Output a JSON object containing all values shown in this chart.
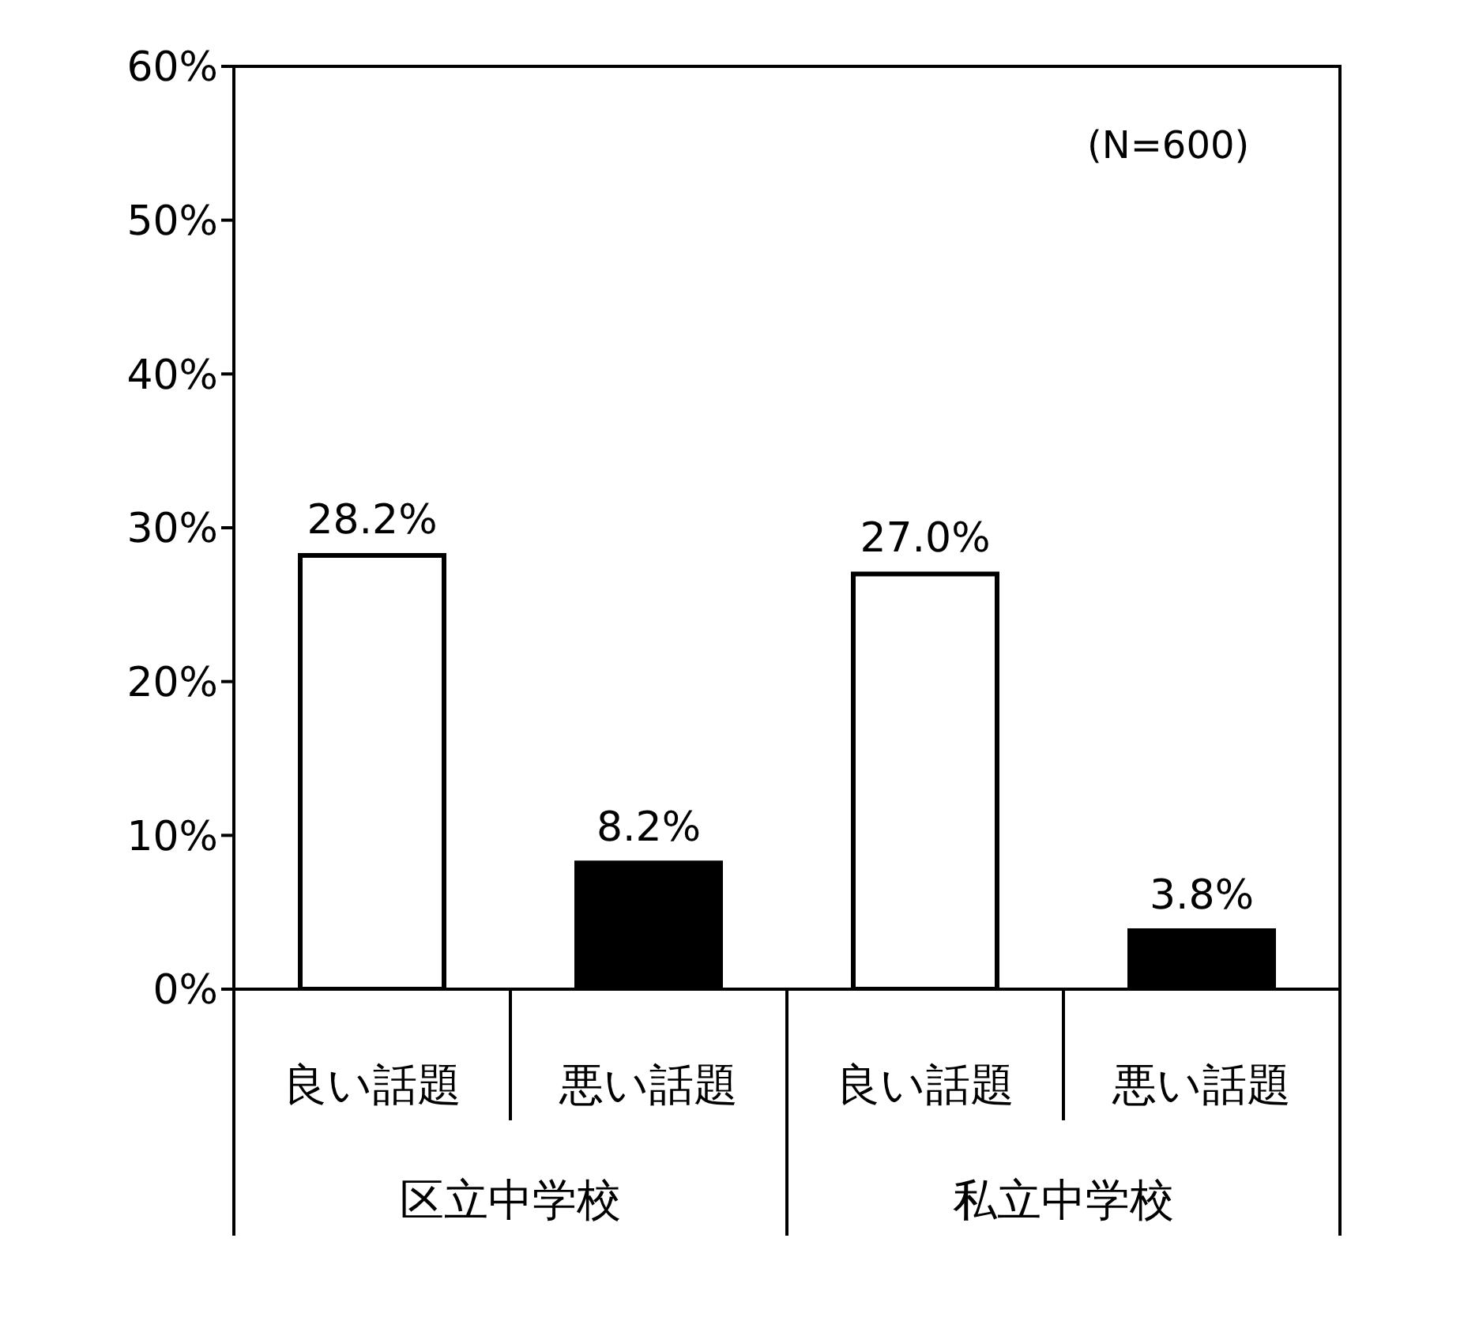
{
  "chart_data": {
    "type": "bar",
    "categories": [
      "良い話題",
      "悪い話題",
      "良い話題",
      "悪い話題"
    ],
    "values": [
      28.2,
      8.2,
      27.0,
      3.8
    ],
    "colors": [
      "#ffffff",
      "#000000",
      "#ffffff",
      "#000000"
    ],
    "value_labels": [
      "28.2%",
      "8.2%",
      "27.0%",
      "3.8%"
    ],
    "ylim": [
      0,
      60
    ],
    "yticks": [
      {
        "value": 0,
        "label": "0%"
      },
      {
        "value": 10,
        "label": "10%"
      },
      {
        "value": 20,
        "label": "20%"
      },
      {
        "value": 30,
        "label": "30%"
      },
      {
        "value": 40,
        "label": "40%"
      },
      {
        "value": 50,
        "label": "50%"
      },
      {
        "value": 60,
        "label": "60%"
      }
    ],
    "annotations": [
      "(N=600)",
      "区立中学校",
      "私立中学校"
    ],
    "grid": false,
    "legend": false
  }
}
